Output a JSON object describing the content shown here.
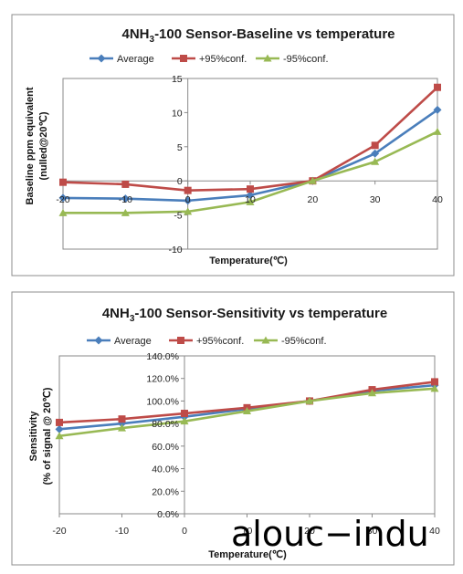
{
  "chart_data": [
    {
      "type": "line",
      "title_prefix": "4NH",
      "title_sub": "3",
      "title_suffix": "-100 Sensor-Baseline vs temperature",
      "xlabel": "Temperature(℃)",
      "ylabel_line1": "Baseline ppm equivalent",
      "ylabel_line2": "(nulled@20℃)",
      "x": [
        -20,
        -10,
        0,
        10,
        20,
        30,
        40
      ],
      "x_tick_labels": [
        "-20",
        "-10",
        "0",
        "10",
        "20",
        "30",
        "40"
      ],
      "y_tick_labels": [
        "-10",
        "-5",
        "0",
        "5",
        "10",
        "15"
      ],
      "xlim": [
        -20,
        40
      ],
      "ylim": [
        -10,
        15
      ],
      "y_ticks": [
        -10,
        -5,
        0,
        5,
        10,
        15
      ],
      "grid": false,
      "legend_position": "top",
      "series": [
        {
          "name": "Average",
          "color": "#4a7ebb",
          "marker": "diamond",
          "values": [
            -2.5,
            -2.6,
            -2.9,
            -2.1,
            0,
            4.0,
            10.4
          ]
        },
        {
          "name": "+95%conf.",
          "color": "#be4b48",
          "marker": "square",
          "values": [
            -0.2,
            -0.5,
            -1.4,
            -1.2,
            0,
            5.2,
            13.7
          ]
        },
        {
          "name": "-95%conf.",
          "color": "#98b954",
          "marker": "triangle",
          "values": [
            -4.7,
            -4.7,
            -4.5,
            -3.1,
            0,
            2.8,
            7.2
          ]
        }
      ]
    },
    {
      "type": "line",
      "title_prefix": "4NH",
      "title_sub": "3",
      "title_suffix": "-100 Sensor-Sensitivity vs temperature",
      "xlabel": "Temperature(℃)",
      "ylabel_line1": "Sensitivity",
      "ylabel_line2": "(% of signal @ 20℃)",
      "x": [
        -20,
        -10,
        0,
        10,
        20,
        30,
        40
      ],
      "x_tick_labels": [
        "-20",
        "-10",
        "0",
        "10",
        "20",
        "30",
        "40"
      ],
      "y_tick_labels": [
        "0.0%",
        "20.0%",
        "40.0%",
        "60.0%",
        "80.0%",
        "100.0%",
        "120.0%",
        "140.0%"
      ],
      "xlim": [
        -20,
        40
      ],
      "ylim": [
        0,
        140
      ],
      "y_ticks": [
        0,
        20,
        40,
        60,
        80,
        100,
        120,
        140
      ],
      "grid": false,
      "legend_position": "top",
      "series": [
        {
          "name": "Average",
          "color": "#4a7ebb",
          "marker": "diamond",
          "values": [
            75,
            80,
            86,
            93,
            100,
            109,
            114
          ]
        },
        {
          "name": "+95%conf.",
          "color": "#be4b48",
          "marker": "square",
          "values": [
            81,
            84,
            89,
            94,
            100,
            110,
            117
          ]
        },
        {
          "name": "-95%conf.",
          "color": "#98b954",
          "marker": "triangle",
          "values": [
            69,
            76,
            82,
            91,
            100,
            107,
            111
          ]
        }
      ]
    }
  ],
  "watermark": "alouc−indu"
}
